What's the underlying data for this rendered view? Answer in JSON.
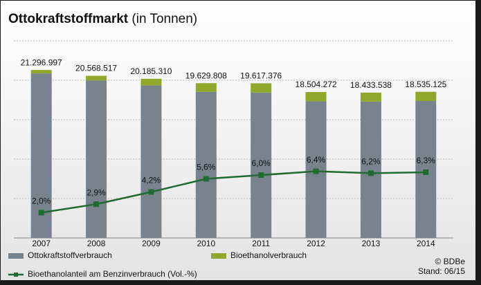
{
  "chart_data": {
    "type": "bar",
    "title": "Ottokraftstoffmarkt",
    "subtitle": "(in Tonnen)",
    "categories": [
      "2007",
      "2008",
      "2009",
      "2010",
      "2011",
      "2012",
      "2013",
      "2014"
    ],
    "stacked": true,
    "series": [
      {
        "name": "Ottokraftstoffverbrauch",
        "color": "#78838e",
        "values": [
          20871000,
          19973000,
          19337000,
          18531000,
          18440000,
          17320000,
          17291000,
          17367000
        ]
      },
      {
        "name": "Bioethanolverbrauch",
        "color": "#8fa82c",
        "values": [
          426000,
          596000,
          848000,
          1099000,
          1177000,
          1184000,
          1143000,
          1168000
        ]
      },
      {
        "name": "Bioethanolanteil am Benzinverbrauch (Vol.-%)",
        "type": "line",
        "axis": "y2",
        "color": "#1f6b30",
        "values": [
          2.0,
          2.9,
          4.2,
          5.6,
          6.0,
          6.4,
          6.2,
          6.3
        ],
        "value_labels": [
          "2,0%",
          "2,9%",
          "4,2%",
          "5,6%",
          "6,0%",
          "6,4%",
          "6,2%",
          "6,3%"
        ]
      }
    ],
    "totals": {
      "values": [
        21296997,
        20568517,
        20185310,
        19629808,
        19617376,
        18504272,
        18433538,
        18535125
      ],
      "value_labels": [
        "21.296.997",
        "20.568.517",
        "20.185.310",
        "19.629.808",
        "19.617.376",
        "18.504.272",
        "18.433.538",
        "18.535.125"
      ]
    },
    "ylim": [
      0,
      25000000
    ],
    "yticks": [
      0,
      5000000,
      10000000,
      15000000,
      20000000,
      25000000
    ],
    "y2lim": [
      -0.7,
      20.3
    ],
    "grid": true,
    "source": "© BDBe",
    "date_note": "Stand: 06/15"
  }
}
